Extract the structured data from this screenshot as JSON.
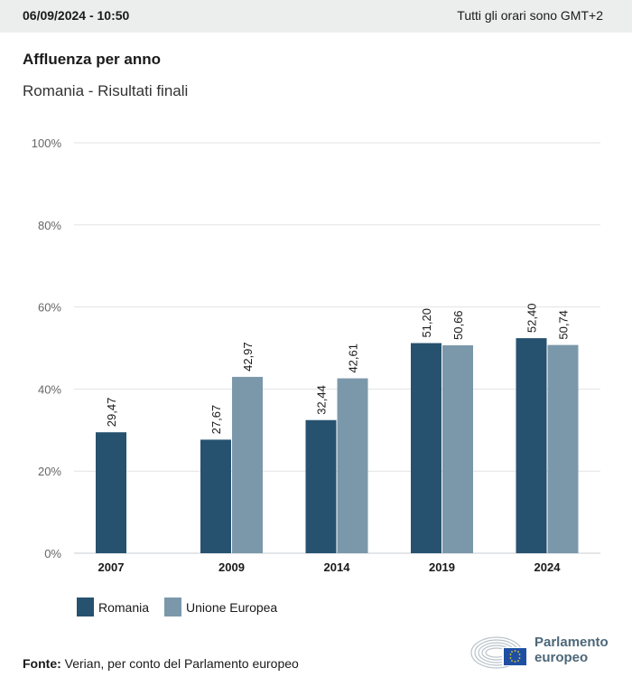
{
  "header": {
    "datetime": "06/09/2024 - 10:50",
    "timezone_note": "Tutti gli orari sono GMT+2"
  },
  "title": "Affluenza per anno",
  "subtitle": "Romania - Risultati finali",
  "colors": {
    "romania": "#26526f",
    "eu": "#7b98ab",
    "grid": "#e3e3e3",
    "axis": "#c8ced3",
    "tick_text": "#666666"
  },
  "chart_data": {
    "type": "bar",
    "title": "Affluenza per anno",
    "subtitle": "Romania - Risultati finali",
    "xlabel": "",
    "ylabel": "",
    "ylim": [
      0,
      100
    ],
    "yticks": [
      0,
      20,
      40,
      60,
      80,
      100
    ],
    "ytick_labels": [
      "0%",
      "20%",
      "40%",
      "60%",
      "80%",
      "100%"
    ],
    "grid": true,
    "categories": [
      "2007",
      "2009",
      "2014",
      "2019",
      "2024"
    ],
    "series": [
      {
        "name": "Romania",
        "color_key": "romania",
        "values": [
          29.47,
          27.67,
          32.44,
          51.2,
          52.4
        ],
        "labels": [
          "29,47",
          "27,67",
          "32,44",
          "51,20",
          "52,40"
        ]
      },
      {
        "name": "Unione Europea",
        "color_key": "eu",
        "values": [
          null,
          42.97,
          42.61,
          50.66,
          50.74
        ],
        "labels": [
          null,
          "42,97",
          "42,61",
          "50,66",
          "50,74"
        ]
      }
    ],
    "legend_position": "bottom-left"
  },
  "legend": [
    {
      "label": "Romania",
      "color_key": "romania"
    },
    {
      "label": "Unione Europea",
      "color_key": "eu"
    }
  ],
  "source": {
    "label": "Fonte:",
    "text": " Verian, per conto del Parlamento europeo"
  },
  "logo": {
    "line1": "Parlamento",
    "line2": "europeo"
  }
}
